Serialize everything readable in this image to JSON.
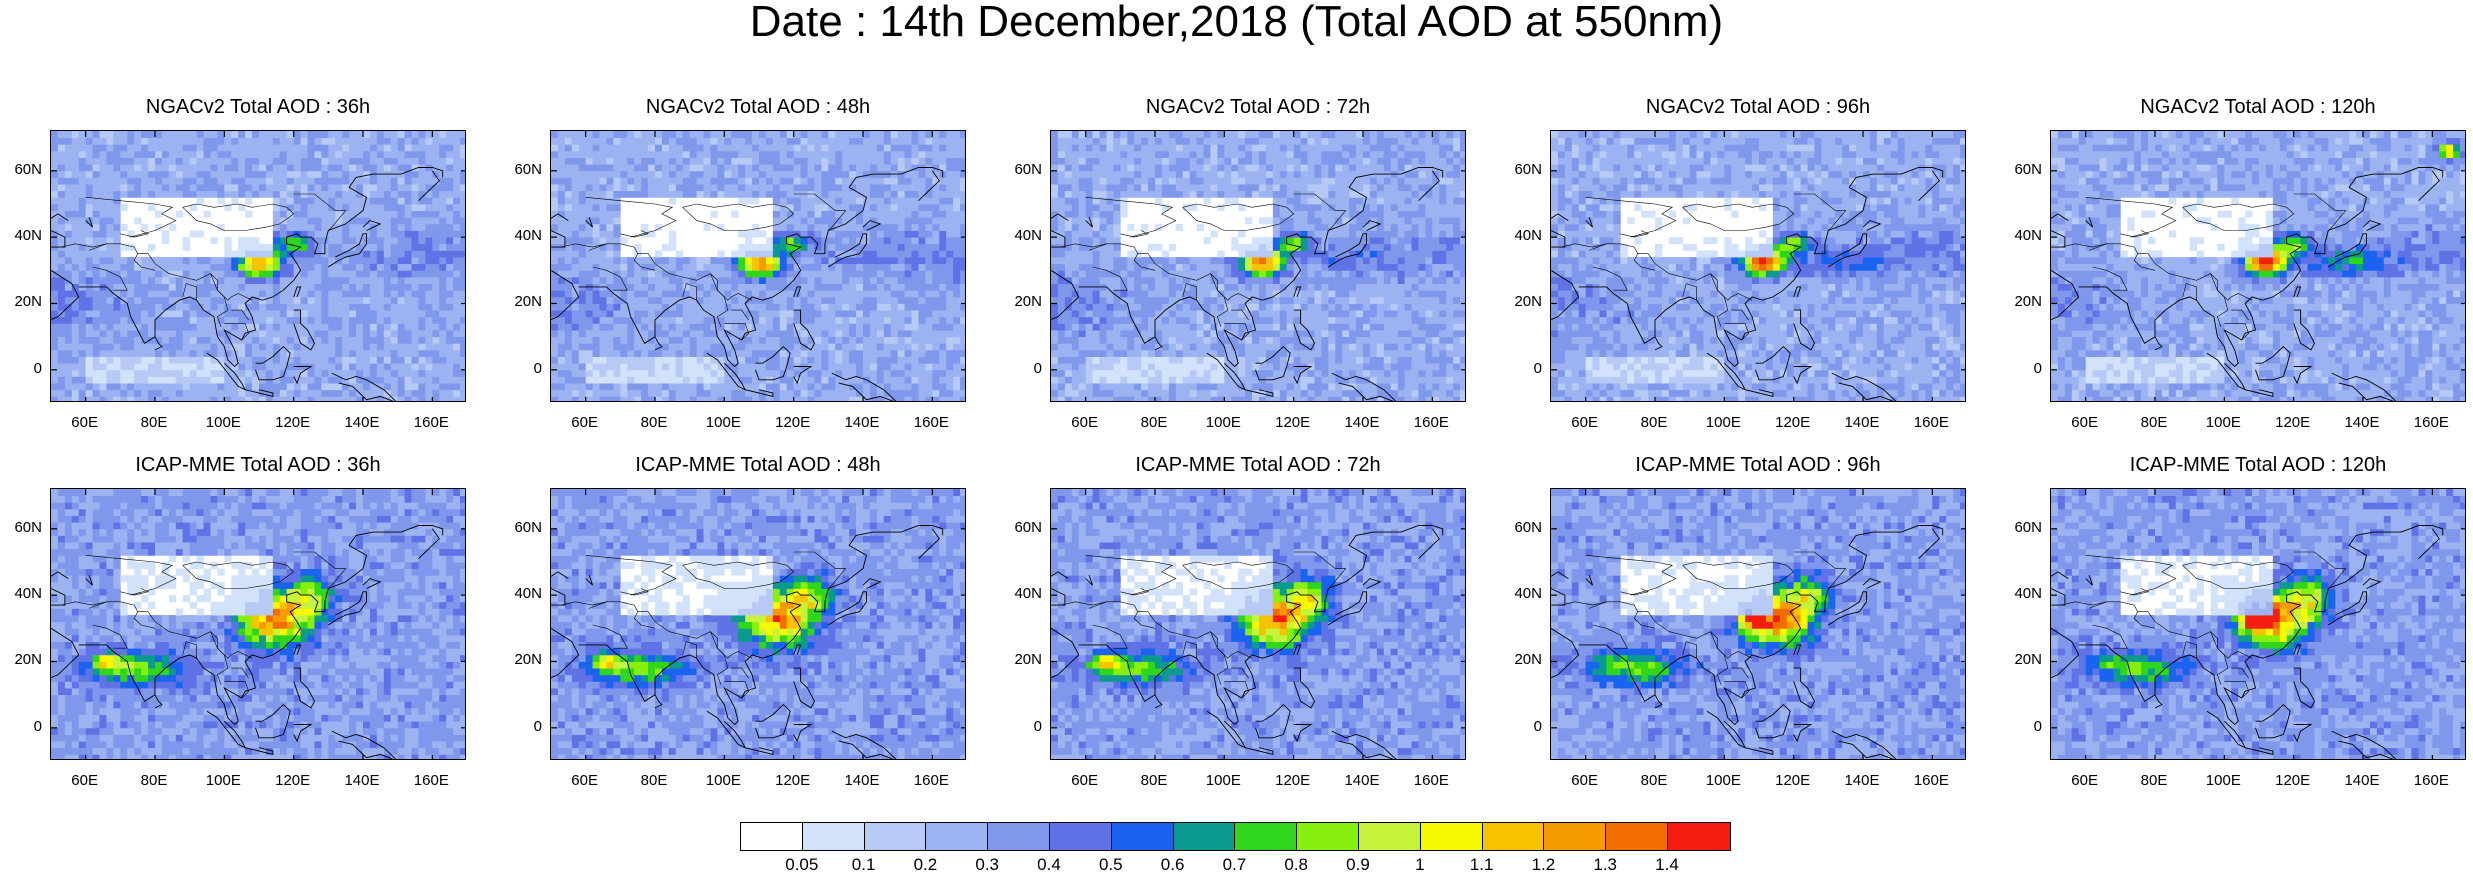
{
  "title": "Date : 14th December,2018 (Total AOD at 550nm)",
  "panels": [
    {
      "title": "NGACv2 Total AOD : 36h",
      "model": "NGAC",
      "lead": 36
    },
    {
      "title": "NGACv2 Total AOD : 48h",
      "model": "NGAC",
      "lead": 48
    },
    {
      "title": "NGACv2 Total AOD : 72h",
      "model": "NGAC",
      "lead": 72
    },
    {
      "title": "NGACv2 Total AOD : 96h",
      "model": "NGAC",
      "lead": 96
    },
    {
      "title": "NGACv2 Total AOD : 120h",
      "model": "NGAC",
      "lead": 120
    },
    {
      "title": "ICAP-MME Total AOD : 36h",
      "model": "ICAP",
      "lead": 36
    },
    {
      "title": "ICAP-MME Total AOD : 48h",
      "model": "ICAP",
      "lead": 48
    },
    {
      "title": "ICAP-MME Total AOD : 72h",
      "model": "ICAP",
      "lead": 72
    },
    {
      "title": "ICAP-MME Total AOD : 96h",
      "model": "ICAP",
      "lead": 96
    },
    {
      "title": "ICAP-MME Total AOD : 120h",
      "model": "ICAP",
      "lead": 120
    }
  ],
  "lat_labels": [
    "60N",
    "40N",
    "20N",
    "0"
  ],
  "lon_labels": [
    "60E",
    "80E",
    "100E",
    "120E",
    "140E",
    "160E"
  ],
  "colorbar": {
    "labels": [
      "0.05",
      "0.1",
      "0.2",
      "0.3",
      "0.4",
      "0.5",
      "0.6",
      "0.7",
      "0.8",
      "0.9",
      "1",
      "1.1",
      "1.2",
      "1.3",
      "1.4"
    ],
    "colors": [
      "#ffffff",
      "#d3e2fb",
      "#b7c9f5",
      "#9db3f1",
      "#7f98ec",
      "#5f72e6",
      "#1a62f0",
      "#0d9a8e",
      "#2fd61c",
      "#88f00e",
      "#c6f43a",
      "#f8f900",
      "#f7c200",
      "#f59a00",
      "#f26d00",
      "#f51d10"
    ]
  }
}
